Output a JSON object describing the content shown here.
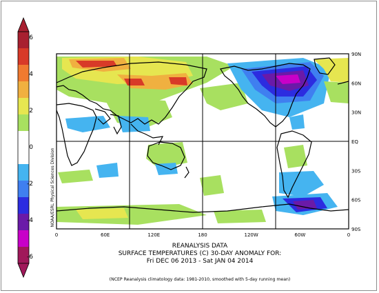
{
  "colorbar": {
    "ticks": [
      "6",
      "4",
      "2",
      "0",
      "-2",
      "-4",
      "-6"
    ],
    "colors": [
      "#a0185a",
      "#c800c8",
      "#6a1aa8",
      "#2c2ce0",
      "#3f7ff0",
      "#45b4f0",
      "#ffffff",
      "#ffffff",
      "#a8e060",
      "#e6e650",
      "#f0b040",
      "#f07a30",
      "#d83a28",
      "#a82030"
    ]
  },
  "map": {
    "side_label": "NOAA/ESRL Physical Sciences Division",
    "lon_labels": [
      "0",
      "60E",
      "120E",
      "180",
      "120W",
      "60W",
      "0"
    ],
    "lat_labels": [
      "90N",
      "60N",
      "30N",
      "EQ",
      "30S",
      "60S",
      "90S"
    ]
  },
  "titles": {
    "line1": "REANALYSIS DATA",
    "line2": "SURFACE TEMPERATURES (C)   30-DAY ANOMALY FOR:",
    "line3": "Fri DEC 06 2013 - Sat JAN 04 2014",
    "footnote": "(NCEP Reanalysis climatology data: 1981-2010, smoothed with 5-day running mean)"
  }
}
